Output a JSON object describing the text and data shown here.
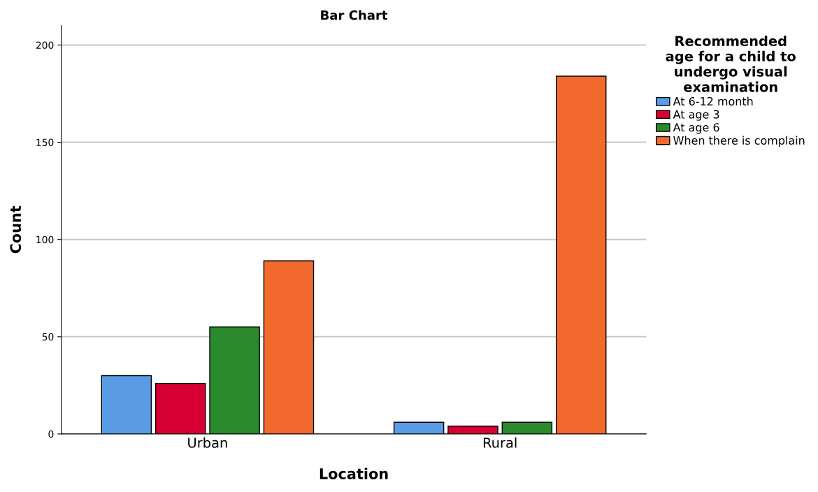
{
  "chart_data": {
    "type": "bar",
    "title": "Bar Chart",
    "xlabel": "Location",
    "ylabel": "Count",
    "categories": [
      "Urban",
      "Rural"
    ],
    "series": [
      {
        "name": "At 6-12 month",
        "color": "#5a9be6",
        "values": [
          30,
          6
        ]
      },
      {
        "name": "At age 3",
        "color": "#d60032",
        "values": [
          26,
          4
        ]
      },
      {
        "name": "At age 6",
        "color": "#2b8a2b",
        "values": [
          55,
          6
        ]
      },
      {
        "name": "When there is complain",
        "color": "#f26a2d",
        "values": [
          89,
          184
        ]
      }
    ],
    "legend_title": "Recommended\nage for a child to\nundergo visual\nexamination",
    "legend": "right",
    "ylim": [
      0,
      210
    ],
    "yticks": [
      0,
      50,
      100,
      150,
      200
    ],
    "grid": "y"
  }
}
